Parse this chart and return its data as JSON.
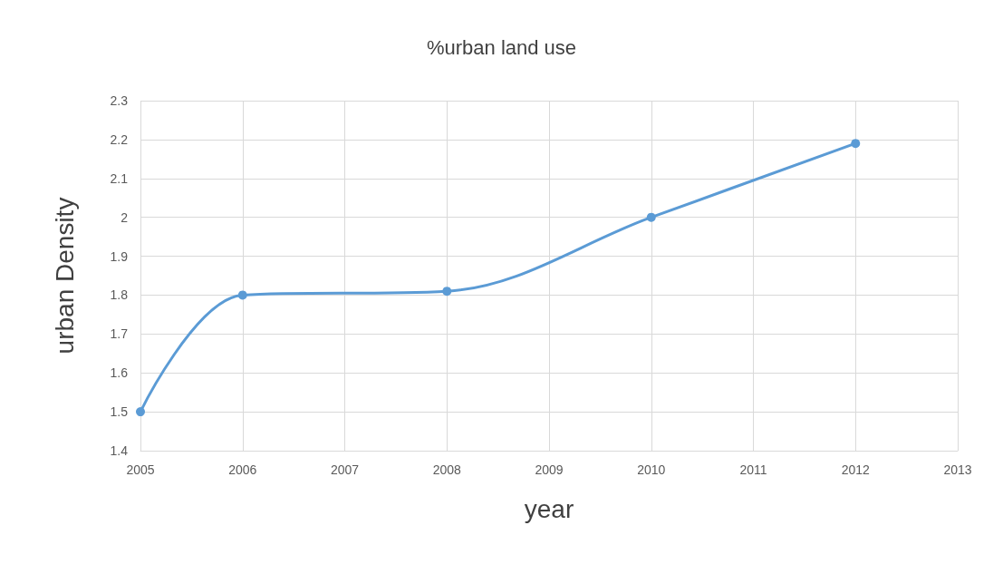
{
  "chart_data": {
    "type": "line",
    "title": "%urban land use",
    "xlabel": "year",
    "ylabel": "urban Density",
    "x": [
      2005,
      2006,
      2008,
      2010,
      2012
    ],
    "series": [
      {
        "color": "#5b9bd5",
        "values": [
          1.5,
          1.8,
          1.81,
          2.0,
          2.19
        ]
      }
    ],
    "xlim": [
      2005,
      2013
    ],
    "xticks": [
      2005,
      2006,
      2007,
      2008,
      2009,
      2010,
      2011,
      2012,
      2013
    ],
    "ylim": [
      1.4,
      2.3
    ],
    "yticks": [
      1.4,
      1.5,
      1.6,
      1.7,
      1.8,
      1.9,
      2,
      2.1,
      2.2,
      2.3
    ],
    "grid": true,
    "marker": "circle",
    "line_style": "solid"
  }
}
